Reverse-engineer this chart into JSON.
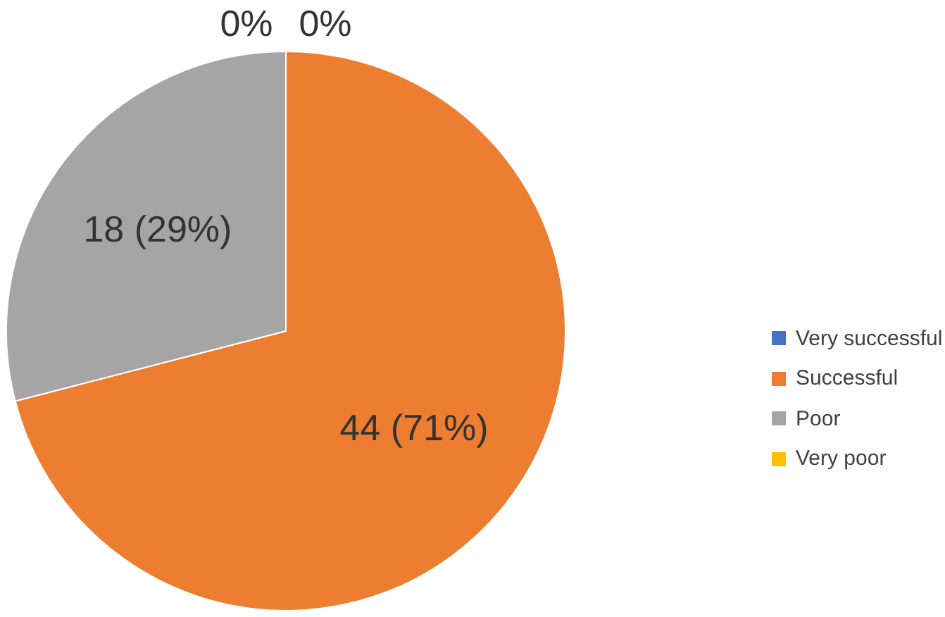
{
  "chart_data": {
    "type": "pie",
    "categories": [
      "Very successful",
      "Successful",
      "Poor",
      "Very poor"
    ],
    "values": [
      0,
      44,
      18,
      0
    ],
    "colors": [
      "#4472c4",
      "#ed7d31",
      "#a5a5a5",
      "#ffc000"
    ],
    "value_labels": [
      "0%",
      "44 (71%)",
      "18 (29%)",
      "0%"
    ],
    "legend": "right"
  }
}
